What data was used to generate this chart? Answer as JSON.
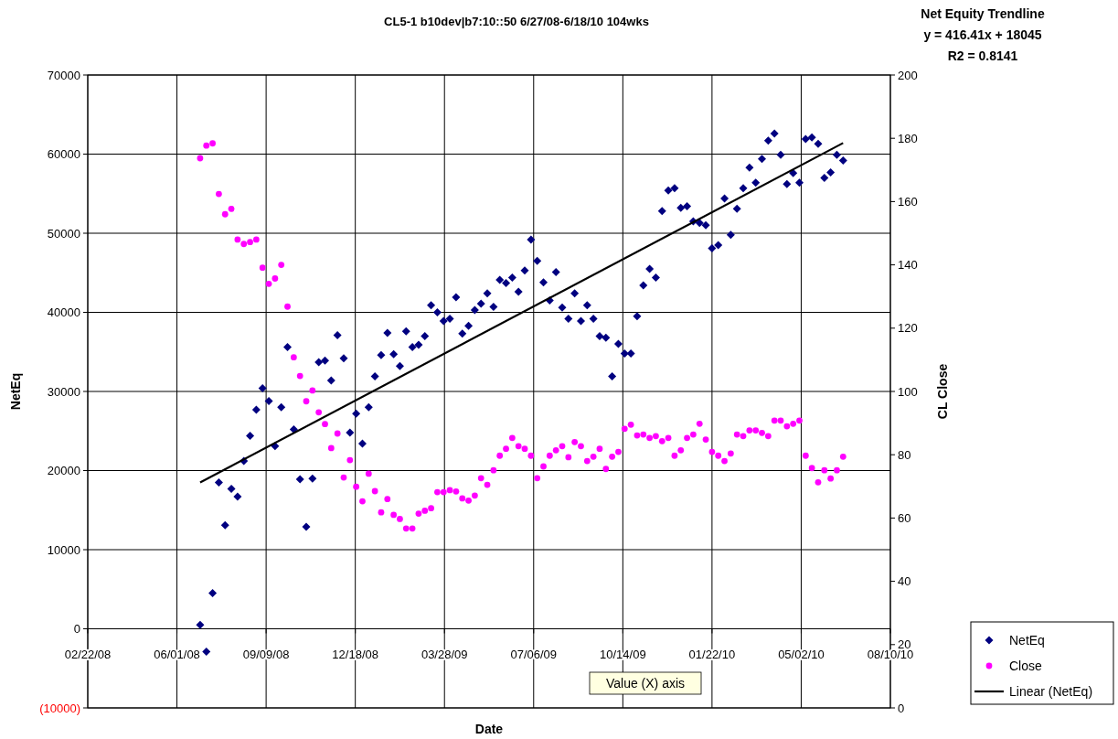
{
  "chart_data": {
    "type": "scatter",
    "title": "CL5-1 b10dev|b7:10::50 6/27/08-6/18/10 104wks",
    "xlabel": "Date",
    "ylabel": "NetEq",
    "y2label": "CL Close",
    "annotations": [
      "Net Equity Trendline",
      "y = 416.41x + 18045",
      "R2 = 0.8141",
      "Value (X) axis"
    ],
    "x": [
      "2008-06-27",
      "2008-07-04",
      "2008-07-11",
      "2008-07-18",
      "2008-07-25",
      "2008-08-01",
      "2008-08-08",
      "2008-08-15",
      "2008-08-22",
      "2008-08-29",
      "2008-09-05",
      "2008-09-12",
      "2008-09-19",
      "2008-09-26",
      "2008-10-03",
      "2008-10-10",
      "2008-10-17",
      "2008-10-24",
      "2008-10-31",
      "2008-11-07",
      "2008-11-14",
      "2008-11-21",
      "2008-11-28",
      "2008-12-05",
      "2008-12-12",
      "2008-12-19",
      "2008-12-26",
      "2009-01-02",
      "2009-01-09",
      "2009-01-16",
      "2009-01-23",
      "2009-01-30",
      "2009-02-06",
      "2009-02-13",
      "2009-02-20",
      "2009-02-27",
      "2009-03-06",
      "2009-03-13",
      "2009-03-20",
      "2009-03-27",
      "2009-04-03",
      "2009-04-10",
      "2009-04-17",
      "2009-04-24",
      "2009-05-01",
      "2009-05-08",
      "2009-05-15",
      "2009-05-22",
      "2009-05-29",
      "2009-06-05",
      "2009-06-12",
      "2009-06-19",
      "2009-06-26",
      "2009-07-03",
      "2009-07-10",
      "2009-07-17",
      "2009-07-24",
      "2009-07-31",
      "2009-08-07",
      "2009-08-14",
      "2009-08-21",
      "2009-08-28",
      "2009-09-04",
      "2009-09-11",
      "2009-09-18",
      "2009-09-25",
      "2009-10-02",
      "2009-10-09",
      "2009-10-16",
      "2009-10-23",
      "2009-10-30",
      "2009-11-06",
      "2009-11-13",
      "2009-11-20",
      "2009-11-27",
      "2009-12-04",
      "2009-12-11",
      "2009-12-18",
      "2009-12-25",
      "2010-01-01",
      "2010-01-08",
      "2010-01-15",
      "2010-01-22",
      "2010-01-29",
      "2010-02-05",
      "2010-02-12",
      "2010-02-19",
      "2010-02-26",
      "2010-03-05",
      "2010-03-12",
      "2010-03-19",
      "2010-03-26",
      "2010-04-02",
      "2010-04-09",
      "2010-04-16",
      "2010-04-23",
      "2010-04-30",
      "2010-05-07",
      "2010-05-14",
      "2010-05-21",
      "2010-05-28",
      "2010-06-04",
      "2010-06-11",
      "2010-06-18"
    ],
    "series": [
      {
        "name": "NetEq",
        "marker": "diamond",
        "color": "#000080",
        "values": [
          500,
          -2900,
          4500,
          18500,
          13100,
          17700,
          16700,
          21200,
          24400,
          27700,
          30400,
          28800,
          23100,
          28000,
          35600,
          25200,
          18900,
          12900,
          19000,
          33700,
          33900,
          31400,
          37100,
          34200,
          24800,
          27200,
          23400,
          28000,
          31900,
          34600,
          37400,
          34700,
          33200,
          37600,
          35600,
          35900,
          37000,
          40900,
          40000,
          38900,
          39200,
          41900,
          37300,
          38300,
          40300,
          41100,
          42400,
          40700,
          44100,
          43700,
          44400,
          42600,
          45300,
          49200,
          46500,
          43800,
          41500,
          45100,
          40600,
          39200,
          42400,
          38900,
          40900,
          39200,
          37000,
          36800,
          31900,
          36000,
          34800,
          34800,
          39500,
          43400,
          45500,
          44400,
          52800,
          55400,
          55700,
          53200,
          53400,
          51500,
          51300,
          51000,
          48100,
          48500,
          54400,
          49800,
          53100,
          55700,
          58300,
          56400,
          59400,
          61700,
          62600,
          59900,
          56200,
          57600,
          56400,
          61900,
          62100,
          61300,
          57000,
          57700,
          59900,
          59200
        ]
      },
      {
        "name": "Close",
        "marker": "circle",
        "axis": "y2",
        "color": "#ff00ff",
        "values": [
          173.7,
          177.7,
          178.4,
          162.4,
          156.0,
          157.7,
          148.0,
          146.6,
          147.2,
          148.0,
          139.1,
          134.0,
          135.7,
          140.0,
          126.8,
          110.8,
          104.9,
          96.9,
          100.3,
          93.4,
          89.7,
          82.1,
          86.7,
          72.8,
          78.3,
          69.9,
          65.3,
          74.0,
          68.5,
          61.8,
          66.0,
          61.0,
          59.7,
          56.7,
          56.7,
          61.4,
          62.3,
          63.1,
          68.2,
          68.2,
          68.8,
          68.4,
          66.2,
          65.5,
          67.1,
          72.6,
          70.5,
          75.1,
          79.7,
          81.9,
          85.3,
          82.7,
          81.9,
          79.7,
          72.6,
          76.3,
          79.7,
          81.4,
          82.7,
          79.2,
          84.0,
          82.7,
          78.0,
          79.4,
          81.9,
          75.5,
          79.4,
          80.9,
          88.2,
          89.5,
          86.1,
          86.4,
          85.3,
          85.9,
          84.3,
          85.3,
          79.7,
          81.4,
          85.3,
          86.4,
          89.8,
          84.8,
          80.9,
          79.7,
          78.0,
          80.4,
          86.4,
          85.9,
          87.7,
          87.7,
          86.9,
          85.9,
          90.8,
          90.8,
          89.0,
          89.8,
          90.8,
          79.7,
          75.8,
          71.3,
          75.1,
          72.5,
          75.1,
          79.4
        ]
      },
      {
        "name": "Linear (NetEq)",
        "type": "line",
        "marker": "none",
        "line_style": "solid",
        "color": "#000000",
        "x": [
          "2008-06-27",
          "2010-06-18"
        ],
        "values": [
          18500,
          61400
        ]
      }
    ],
    "xlim": [
      "2008-02-22",
      "2010-08-10"
    ],
    "xticks": [
      {
        "value": "2008-02-22",
        "label": "02/22/08"
      },
      {
        "value": "2008-06-01",
        "label": "06/01/08"
      },
      {
        "value": "2008-09-09",
        "label": "09/09/08"
      },
      {
        "value": "2008-12-18",
        "label": "12/18/08"
      },
      {
        "value": "2009-03-28",
        "label": "03/28/09"
      },
      {
        "value": "2009-07-06",
        "label": "07/06/09"
      },
      {
        "value": "2009-10-14",
        "label": "10/14/09"
      },
      {
        "value": "2010-01-22",
        "label": "01/22/10"
      },
      {
        "value": "2010-05-02",
        "label": "05/02/10"
      },
      {
        "value": "2010-08-10",
        "label": "08/10/10"
      }
    ],
    "ylim": [
      -10000,
      70000
    ],
    "yticks": [
      {
        "value": -10000,
        "label": "(10000)"
      },
      0,
      10000,
      20000,
      30000,
      40000,
      50000,
      60000,
      70000
    ],
    "y2lim": [
      0,
      200
    ],
    "y2ticks": [
      0,
      20,
      40,
      60,
      80,
      100,
      120,
      140,
      160,
      180,
      200
    ],
    "grid": true,
    "legend": "bottom right"
  }
}
